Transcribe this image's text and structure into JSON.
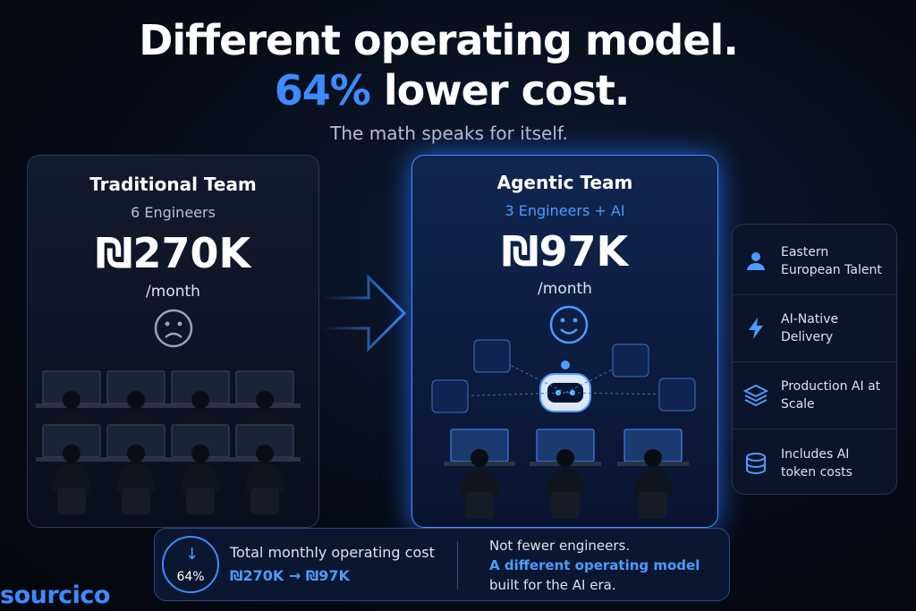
{
  "header": {
    "title_line1": "Different operating model.",
    "title_highlight": "64%",
    "title_rest": "lower cost.",
    "subtitle": "The math speaks for itself."
  },
  "traditional": {
    "title": "Traditional Team",
    "team": "6 Engineers",
    "cost": "₪270K",
    "period": "/month"
  },
  "agentic": {
    "title": "Agentic Team",
    "team": "3 Engineers + AI",
    "cost": "₪97K",
    "period": "/month"
  },
  "features": [
    {
      "label": "Eastern European Talent"
    },
    {
      "label": "AI-Native Delivery"
    },
    {
      "label": "Production AI at Scale"
    },
    {
      "label": "Includes AI token costs"
    }
  ],
  "summary": {
    "badge": "64%",
    "label": "Total monthly operating cost",
    "change": "₪270K → ₪97K",
    "note_line1": "Not fewer engineers.",
    "note_line2": "A different operating model",
    "note_line3": "built for the AI era."
  },
  "logo": "sourcico"
}
